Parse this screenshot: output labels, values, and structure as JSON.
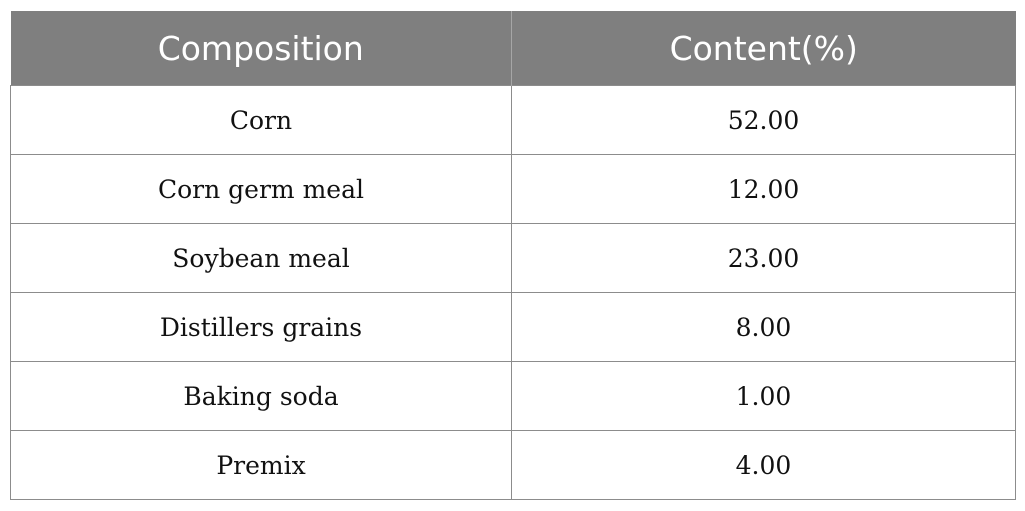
{
  "table": {
    "headers": [
      "Composition",
      "Content(%)"
    ],
    "rows": [
      [
        "Corn",
        "52.00"
      ],
      [
        "Corn germ meal",
        "12.00"
      ],
      [
        "Soybean meal",
        "23.00"
      ],
      [
        "Distillers grains",
        "8.00"
      ],
      [
        "Baking soda",
        "1.00"
      ],
      [
        "Premix",
        "4.00"
      ]
    ]
  }
}
